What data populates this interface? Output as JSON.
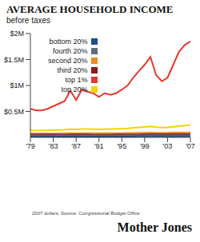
{
  "chart_data": {
    "type": "line",
    "title": "AVERAGE HOUSEHOLD INCOME",
    "subtitle": "before taxes",
    "annotations": [
      "2007 dollars. Source: Congressional Budget Office",
      "Mother Jones"
    ],
    "x": [
      1979,
      1980,
      1981,
      1982,
      1983,
      1984,
      1985,
      1986,
      1987,
      1988,
      1989,
      1990,
      1991,
      1992,
      1993,
      1994,
      1995,
      1996,
      1997,
      1998,
      1999,
      2000,
      2001,
      2002,
      2003,
      2004,
      2005,
      2006,
      2007
    ],
    "xlim": [
      1979,
      2007
    ],
    "xticks": [
      {
        "value": 1979,
        "label": "'79"
      },
      {
        "value": 1983,
        "label": "'83"
      },
      {
        "value": 1987,
        "label": "'87"
      },
      {
        "value": 1991,
        "label": "'91"
      },
      {
        "value": 1995,
        "label": "'95"
      },
      {
        "value": 1999,
        "label": "'99"
      },
      {
        "value": 2003,
        "label": "'03"
      },
      {
        "value": 2007,
        "label": "'07"
      }
    ],
    "ylim": [
      0,
      2000000
    ],
    "yticks": [
      {
        "value": 500000,
        "label": "$0.5M"
      },
      {
        "value": 1000000,
        "label": "$1M"
      },
      {
        "value": 1500000,
        "label": "$1.5M"
      },
      {
        "value": 2000000,
        "label": "$2M"
      }
    ],
    "grid": false,
    "legend": "top-left",
    "series": [
      {
        "name": "top 1%",
        "color": "#e8382e",
        "values": [
          550000,
          520000,
          520000,
          550000,
          600000,
          650000,
          700000,
          900000,
          720000,
          920000,
          880000,
          850000,
          780000,
          850000,
          820000,
          850000,
          920000,
          1000000,
          1150000,
          1280000,
          1400000,
          1550000,
          1200000,
          1080000,
          1150000,
          1400000,
          1650000,
          1780000,
          1850000
        ]
      },
      {
        "name": "top 20%",
        "color": "#f5d400",
        "values": [
          135000,
          132000,
          133000,
          135000,
          138000,
          143000,
          148000,
          158000,
          152000,
          160000,
          160000,
          157000,
          153000,
          158000,
          160000,
          163000,
          168000,
          174000,
          183000,
          192000,
          200000,
          210000,
          196000,
          190000,
          193000,
          205000,
          217000,
          227000,
          235000
        ]
      },
      {
        "name": "second 20%",
        "color": "#f08a24",
        "values": [
          77000,
          76000,
          76000,
          76000,
          77000,
          78000,
          79000,
          80000,
          80000,
          81000,
          81000,
          80000,
          79000,
          80000,
          80000,
          81000,
          82000,
          83000,
          85000,
          87000,
          89000,
          91000,
          90000,
          89000,
          90000,
          91000,
          93000,
          94000,
          95000
        ]
      },
      {
        "name": "third 20%",
        "color": "#8b1a1a",
        "values": [
          55000,
          54000,
          54000,
          53000,
          54000,
          55000,
          55000,
          56000,
          56000,
          56000,
          56000,
          55000,
          55000,
          55000,
          55000,
          56000,
          56000,
          57000,
          58000,
          59000,
          60000,
          61000,
          61000,
          60000,
          60000,
          61000,
          61000,
          62000,
          62000
        ]
      },
      {
        "name": "fourth 20%",
        "color": "#5a6e7f",
        "values": [
          38000,
          37000,
          37000,
          36000,
          36000,
          37000,
          37000,
          38000,
          38000,
          38000,
          38000,
          38000,
          37000,
          37000,
          37000,
          38000,
          38000,
          39000,
          39000,
          40000,
          41000,
          41000,
          41000,
          41000,
          41000,
          41000,
          42000,
          42000,
          42000
        ]
      },
      {
        "name": "bottom 20%",
        "color": "#1b4f8a",
        "values": [
          16000,
          15500,
          15500,
          15000,
          15000,
          15500,
          15500,
          16000,
          16000,
          16000,
          16000,
          16000,
          15500,
          15500,
          15500,
          16000,
          16500,
          16500,
          17000,
          17500,
          18000,
          18500,
          18000,
          17500,
          17500,
          17500,
          17500,
          18000,
          18000
        ]
      }
    ]
  }
}
